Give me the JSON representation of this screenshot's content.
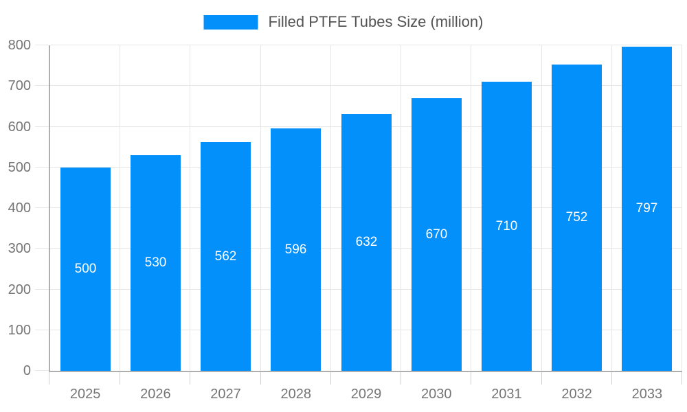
{
  "legend": {
    "label": "Filled PTFE Tubes Size (million)"
  },
  "chart_data": {
    "type": "bar",
    "title": "",
    "xlabel": "",
    "ylabel": "",
    "categories": [
      "2025",
      "2026",
      "2027",
      "2028",
      "2029",
      "2030",
      "2031",
      "2032",
      "2033"
    ],
    "series": [
      {
        "name": "Filled PTFE Tubes Size (million)",
        "values": [
          500,
          530,
          562,
          596,
          632,
          670,
          710,
          752,
          797
        ]
      }
    ],
    "value_labels_shown": true,
    "ylim": [
      0,
      800
    ],
    "ytick_interval": 100,
    "yticks": [
      0,
      100,
      200,
      300,
      400,
      500,
      600,
      700,
      800
    ],
    "grid": true,
    "legend_position": "top",
    "colors": {
      "bar": "#0490FB",
      "value_label": "#FFFFFF",
      "axis_text": "#757575",
      "legend_text": "#545454",
      "grid_line": "#E6E6E6",
      "axis_line": "#AFAFAF",
      "tick": "#CFCFCF",
      "background": "#FFFFFF"
    }
  }
}
